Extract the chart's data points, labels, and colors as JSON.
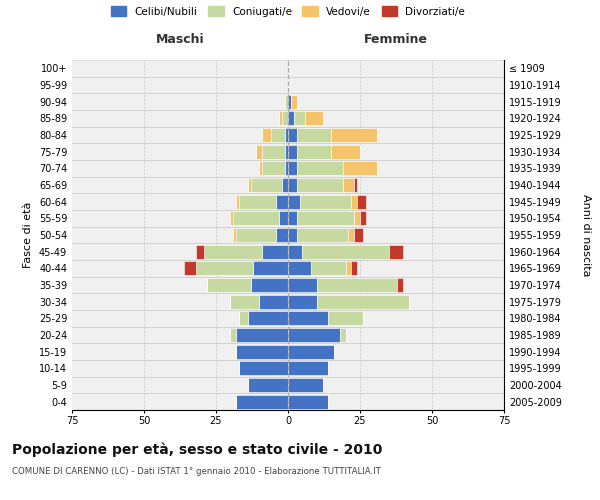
{
  "age_groups": [
    "100+",
    "95-99",
    "90-94",
    "85-89",
    "80-84",
    "75-79",
    "70-74",
    "65-69",
    "60-64",
    "55-59",
    "50-54",
    "45-49",
    "40-44",
    "35-39",
    "30-34",
    "25-29",
    "20-24",
    "15-19",
    "10-14",
    "5-9",
    "0-4"
  ],
  "birth_years": [
    "≤ 1909",
    "1910-1914",
    "1915-1919",
    "1920-1924",
    "1925-1929",
    "1930-1934",
    "1935-1939",
    "1940-1944",
    "1945-1949",
    "1950-1954",
    "1955-1959",
    "1960-1964",
    "1965-1969",
    "1970-1974",
    "1975-1979",
    "1980-1984",
    "1985-1989",
    "1990-1994",
    "1995-1999",
    "2000-2004",
    "2005-2009"
  ],
  "male_celibe": [
    0,
    0,
    0,
    0,
    1,
    1,
    1,
    2,
    4,
    3,
    4,
    9,
    12,
    13,
    10,
    14,
    18,
    18,
    17,
    14,
    18
  ],
  "male_coniugato": [
    0,
    0,
    1,
    2,
    5,
    8,
    8,
    11,
    13,
    16,
    14,
    20,
    20,
    15,
    10,
    3,
    2,
    0,
    0,
    0,
    0
  ],
  "male_vedovo": [
    0,
    0,
    0,
    1,
    3,
    2,
    1,
    1,
    1,
    1,
    1,
    0,
    0,
    0,
    0,
    0,
    0,
    0,
    0,
    0,
    0
  ],
  "male_divorziato": [
    0,
    0,
    0,
    0,
    0,
    0,
    0,
    0,
    0,
    0,
    0,
    3,
    4,
    0,
    0,
    0,
    0,
    0,
    0,
    0,
    0
  ],
  "female_nubile": [
    0,
    0,
    1,
    2,
    3,
    3,
    3,
    3,
    4,
    3,
    3,
    5,
    8,
    10,
    10,
    14,
    18,
    16,
    14,
    12,
    14
  ],
  "female_coniugata": [
    0,
    0,
    0,
    4,
    12,
    12,
    16,
    16,
    18,
    20,
    18,
    30,
    12,
    28,
    32,
    12,
    2,
    0,
    0,
    0,
    0
  ],
  "female_vedova": [
    0,
    0,
    2,
    6,
    16,
    10,
    12,
    4,
    2,
    2,
    2,
    0,
    2,
    0,
    0,
    0,
    0,
    0,
    0,
    0,
    0
  ],
  "female_divorziata": [
    0,
    0,
    0,
    0,
    0,
    0,
    0,
    1,
    3,
    2,
    3,
    5,
    2,
    2,
    0,
    0,
    0,
    0,
    0,
    0,
    0
  ],
  "colors": {
    "celibe": "#4472c4",
    "coniugato": "#c5d9a0",
    "vedovo": "#f5c36a",
    "divorziato": "#c0392b"
  },
  "xlim": 75,
  "title": "Popolazione per età, sesso e stato civile - 2010",
  "subtitle": "COMUNE DI CARENNO (LC) - Dati ISTAT 1° gennaio 2010 - Elaborazione TUTTITALIA.IT",
  "ylabel_left": "Fasce di età",
  "ylabel_right": "Anni di nascita",
  "xlabel_male": "Maschi",
  "xlabel_female": "Femmine",
  "legend_labels": [
    "Celibi/Nubili",
    "Coniugati/e",
    "Vedovi/e",
    "Divorziati/e"
  ],
  "bg_color": "#f0f0f0",
  "plot_bg": "#ffffff",
  "grid_color": "#cccccc"
}
